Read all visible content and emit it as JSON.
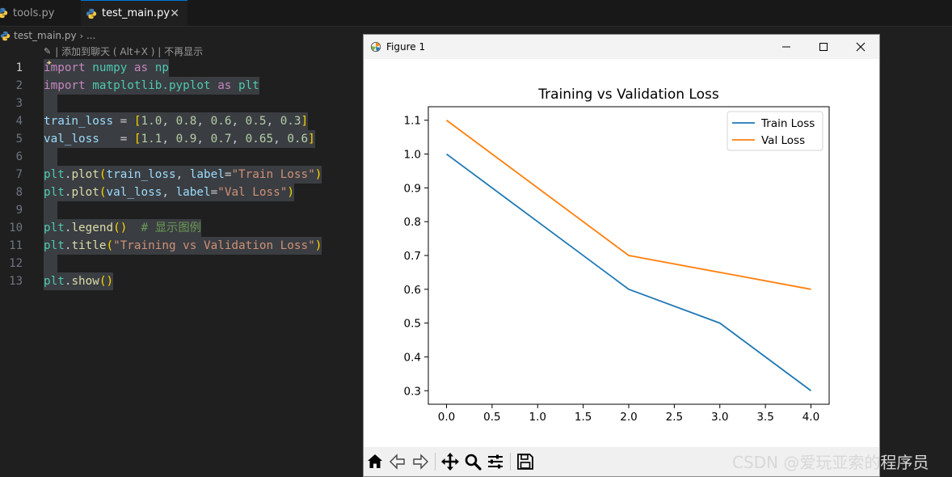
{
  "editor": {
    "tabs": [
      {
        "label": "tools.py",
        "active": false
      },
      {
        "label": "test_main.py",
        "active": true,
        "close_icon": "close-icon"
      }
    ],
    "breadcrumb": {
      "file": "test_main.py",
      "separator": "›",
      "more": "..."
    },
    "codelens": {
      "text": "| 添加到聊天 ( Alt+X ) | 不再显示",
      "icon": "chat-sparkle-icon"
    },
    "current_line": 1,
    "lines": [
      {
        "n": "1",
        "tokens": [
          [
            "kw",
            "import"
          ],
          [
            "p",
            " "
          ],
          [
            "mod",
            "numpy"
          ],
          [
            "p",
            " "
          ],
          [
            "kw",
            "as"
          ],
          [
            "p",
            " "
          ],
          [
            "mod",
            "np"
          ]
        ]
      },
      {
        "n": "2",
        "tokens": [
          [
            "kw",
            "import"
          ],
          [
            "p",
            " "
          ],
          [
            "mod",
            "matplotlib.pyplot"
          ],
          [
            "p",
            " "
          ],
          [
            "kw",
            "as"
          ],
          [
            "p",
            " "
          ],
          [
            "mod",
            "plt"
          ]
        ]
      },
      {
        "n": "3",
        "tokens": []
      },
      {
        "n": "4",
        "tokens": [
          [
            "var",
            "train_loss"
          ],
          [
            "p",
            " = "
          ],
          [
            "brk",
            "["
          ],
          [
            "num",
            "1.0"
          ],
          [
            "p",
            ", "
          ],
          [
            "num",
            "0.8"
          ],
          [
            "p",
            ", "
          ],
          [
            "num",
            "0.6"
          ],
          [
            "p",
            ", "
          ],
          [
            "num",
            "0.5"
          ],
          [
            "p",
            ", "
          ],
          [
            "num",
            "0.3"
          ],
          [
            "brk",
            "]"
          ]
        ]
      },
      {
        "n": "5",
        "tokens": [
          [
            "var",
            "val_loss"
          ],
          [
            "p",
            "   = "
          ],
          [
            "brk",
            "["
          ],
          [
            "num",
            "1.1"
          ],
          [
            "p",
            ", "
          ],
          [
            "num",
            "0.9"
          ],
          [
            "p",
            ", "
          ],
          [
            "num",
            "0.7"
          ],
          [
            "p",
            ", "
          ],
          [
            "num",
            "0.65"
          ],
          [
            "p",
            ", "
          ],
          [
            "num",
            "0.6"
          ],
          [
            "brk",
            "]"
          ]
        ]
      },
      {
        "n": "6",
        "tokens": []
      },
      {
        "n": "7",
        "tokens": [
          [
            "mod",
            "plt"
          ],
          [
            "p",
            "."
          ],
          [
            "fn",
            "plot"
          ],
          [
            "brk",
            "("
          ],
          [
            "var",
            "train_loss"
          ],
          [
            "p",
            ", "
          ],
          [
            "var",
            "label"
          ],
          [
            "p",
            "="
          ],
          [
            "str",
            "\"Train Loss\""
          ],
          [
            "brk",
            ")"
          ]
        ]
      },
      {
        "n": "8",
        "tokens": [
          [
            "mod",
            "plt"
          ],
          [
            "p",
            "."
          ],
          [
            "fn",
            "plot"
          ],
          [
            "brk",
            "("
          ],
          [
            "var",
            "val_loss"
          ],
          [
            "p",
            ", "
          ],
          [
            "var",
            "label"
          ],
          [
            "p",
            "="
          ],
          [
            "str",
            "\"Val Loss\""
          ],
          [
            "brk",
            ")"
          ]
        ]
      },
      {
        "n": "9",
        "tokens": []
      },
      {
        "n": "10",
        "tokens": [
          [
            "mod",
            "plt"
          ],
          [
            "p",
            "."
          ],
          [
            "fn",
            "legend"
          ],
          [
            "brk",
            "()"
          ],
          [
            "p",
            "  "
          ],
          [
            "cmt",
            "# 显示图例"
          ]
        ]
      },
      {
        "n": "11",
        "tokens": [
          [
            "mod",
            "plt"
          ],
          [
            "p",
            "."
          ],
          [
            "fn",
            "title"
          ],
          [
            "brk",
            "("
          ],
          [
            "str",
            "\"Training vs Validation Loss\""
          ],
          [
            "brk",
            ")"
          ]
        ]
      },
      {
        "n": "12",
        "tokens": []
      },
      {
        "n": "13",
        "tokens": [
          [
            "mod",
            "plt"
          ],
          [
            "p",
            "."
          ],
          [
            "fn",
            "show"
          ],
          [
            "brk",
            "()"
          ]
        ]
      }
    ]
  },
  "figure_window": {
    "title": "Figure 1",
    "icon": "matplotlib-figure-icon",
    "controls": [
      "minimize-icon",
      "maximize-icon",
      "close-icon"
    ],
    "toolbar": [
      "home-icon",
      "back-arrow-icon",
      "forward-arrow-icon",
      "pan-move-icon",
      "zoom-magnifier-icon",
      "configure-subplots-icon",
      "save-disk-icon"
    ]
  },
  "chart_data": {
    "type": "line",
    "title": "Training vs Validation Loss",
    "xlabel": "",
    "ylabel": "",
    "xlim": [
      -0.2,
      4.2
    ],
    "ylim": [
      0.26,
      1.14
    ],
    "xticks": [
      "0.0",
      "0.5",
      "1.0",
      "1.5",
      "2.0",
      "2.5",
      "3.0",
      "3.5",
      "4.0"
    ],
    "yticks": [
      "0.3",
      "0.4",
      "0.5",
      "0.6",
      "0.7",
      "0.8",
      "0.9",
      "1.0",
      "1.1"
    ],
    "grid": false,
    "legend": "top-right",
    "x": [
      0,
      1,
      2,
      3,
      4
    ],
    "series": [
      {
        "name": "Train Loss",
        "color": "#1f77b4",
        "values": [
          1.0,
          0.8,
          0.6,
          0.5,
          0.3
        ]
      },
      {
        "name": "Val Loss",
        "color": "#ff7f0e",
        "values": [
          1.1,
          0.9,
          0.7,
          0.65,
          0.6
        ]
      }
    ]
  },
  "watermark": "CSDN @爱玩亚索的程序员"
}
